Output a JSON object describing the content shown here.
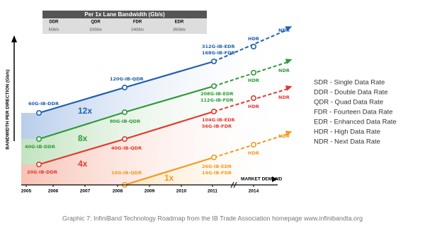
{
  "table": {
    "title": "Per 1x Lane Bandwidth (Gb/s)",
    "columns": [
      "DDR",
      "QDR",
      "FDR",
      "EDR"
    ],
    "values": [
      "5Gb/s",
      "10Gb/s",
      "14Gb/s",
      "26Gb/s"
    ]
  },
  "y_axis_label": "BANDWIDTH PER DIRECTION (Gb/s)",
  "x_axis": {
    "label": "MARKET DEMAND",
    "ticks": [
      "2005",
      "2006",
      "2007",
      "2008",
      "2009",
      "2010",
      "2011",
      "2014"
    ]
  },
  "lines": [
    {
      "multiplier": "12x",
      "color": "#1f5fb0",
      "labels": [
        [
          "60G-IB-DDR"
        ],
        [
          "120G-IB-QDR"
        ],
        [
          "312G-IB-EDR",
          "168G-IB-FDR"
        ],
        [
          "HDR"
        ]
      ],
      "end": "NDR"
    },
    {
      "multiplier": "8x",
      "color": "#2e9b3a",
      "labels": [
        [
          "40G-IB-DDR"
        ],
        [
          "80G-IB-QDR"
        ],
        [
          "208G-IB-EDR",
          "112G-IB-FDR"
        ],
        [
          "HDR"
        ]
      ],
      "end": "NDR"
    },
    {
      "multiplier": "4x",
      "color": "#e03a2f",
      "labels": [
        [
          "20G-IB-DDR"
        ],
        [
          "40G-IB-QDR"
        ],
        [
          "104G-IB-EDR",
          "56G-IB-FDR"
        ],
        [
          "HDR"
        ]
      ],
      "end": "NDR"
    },
    {
      "multiplier": "1x",
      "color": "#f39a1e",
      "labels": [
        [
          "10G-IB-QDR"
        ],
        [
          "26G-IB-EDR",
          "14G-IB-FDR"
        ],
        [
          "HDR"
        ]
      ],
      "end": "NDR"
    }
  ],
  "legend": [
    "SDR - Single Data Rate",
    "DDR - Double Data Rate",
    "QDR - Quad Data Rate",
    "FDR - Fourteen Data Rate",
    "EDR - Enhanced Data Rate",
    "HDR - High Data Rate",
    "NDR - Next Data Rate"
  ],
  "caption": "Graphic 7: InfiniBand Technology Roadmap from the IB Trade Association homepage www.infinibandta.org"
}
